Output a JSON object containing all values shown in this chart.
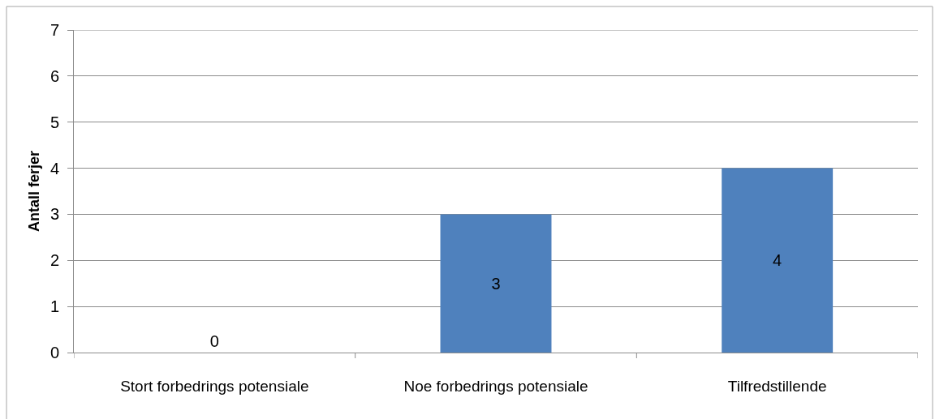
{
  "chart_data": {
    "type": "bar",
    "ylabel": "Antall ferjer",
    "categories": [
      "Stort forbedrings potensiale",
      "Noe forbedrings potensiale",
      "Tilfredstillende"
    ],
    "values": [
      0,
      3,
      4
    ],
    "color": "#4f81bd",
    "ylim": [
      0,
      7
    ],
    "yticks": [
      0,
      1,
      2,
      3,
      4,
      5,
      6,
      7
    ],
    "grid": "y",
    "data_labels": true
  }
}
